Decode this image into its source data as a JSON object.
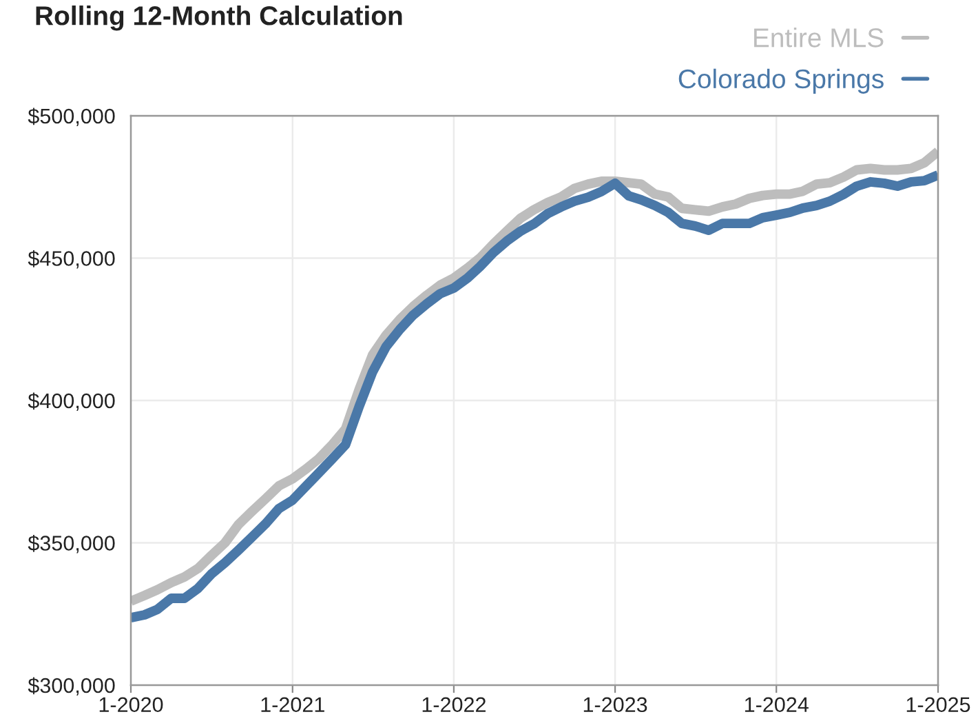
{
  "chart_data": {
    "type": "line",
    "title": "Rolling 12-Month Calculation",
    "x": [
      "2020-01",
      "2020-02",
      "2020-03",
      "2020-04",
      "2020-05",
      "2020-06",
      "2020-07",
      "2020-08",
      "2020-09",
      "2020-10",
      "2020-11",
      "2020-12",
      "2021-01",
      "2021-02",
      "2021-03",
      "2021-04",
      "2021-05",
      "2021-06",
      "2021-07",
      "2021-08",
      "2021-09",
      "2021-10",
      "2021-11",
      "2021-12",
      "2022-01",
      "2022-02",
      "2022-03",
      "2022-04",
      "2022-05",
      "2022-06",
      "2022-07",
      "2022-08",
      "2022-09",
      "2022-10",
      "2022-11",
      "2022-12",
      "2023-01",
      "2023-02",
      "2023-03",
      "2023-04",
      "2023-05",
      "2023-06",
      "2023-07",
      "2023-08",
      "2023-09",
      "2023-10",
      "2023-11",
      "2023-12",
      "2024-01",
      "2024-02",
      "2024-03",
      "2024-04",
      "2024-05",
      "2024-06",
      "2024-07",
      "2024-08",
      "2024-09",
      "2024-10",
      "2024-11",
      "2024-12",
      "2025-01"
    ],
    "series": [
      {
        "name": "Entire MLS",
        "color": "#bdbdbd",
        "values": [
          329500,
          331500,
          333500,
          336000,
          338000,
          341000,
          345500,
          350000,
          356500,
          361000,
          365500,
          370000,
          372500,
          376000,
          379500,
          384500,
          390000,
          404000,
          416000,
          423000,
          428500,
          433000,
          437000,
          440500,
          443000,
          446500,
          450000,
          455000,
          459500,
          464000,
          467000,
          469500,
          471500,
          474500,
          476000,
          477000,
          477000,
          476500,
          476000,
          472500,
          471500,
          467500,
          467000,
          466500,
          468000,
          469000,
          471000,
          472000,
          472500,
          472500,
          473500,
          476000,
          476500,
          478500,
          481000,
          481500,
          481000,
          481000,
          481500,
          483500,
          487500
        ]
      },
      {
        "name": "Colorado Springs",
        "color": "#4a78a8",
        "values": [
          323700,
          324700,
          326600,
          330500,
          330500,
          334000,
          339000,
          343000,
          347500,
          352000,
          356700,
          362000,
          365000,
          370000,
          374500,
          379500,
          384500,
          398000,
          410000,
          419000,
          425000,
          430000,
          434000,
          437500,
          439500,
          443000,
          447000,
          452000,
          456000,
          459500,
          462000,
          465600,
          468000,
          470000,
          471400,
          473400,
          476300,
          471900,
          470500,
          468500,
          466100,
          462200,
          461300,
          459800,
          462200,
          462200,
          462200,
          464200,
          465100,
          466100,
          467600,
          468500,
          470000,
          472400,
          475300,
          476800,
          476300,
          475300,
          476800,
          477200,
          479200
        ]
      }
    ],
    "xlim": [
      "2020-01",
      "2025-01"
    ],
    "xticks": [
      {
        "value": "2020-01",
        "label": "1-2020"
      },
      {
        "value": "2021-01",
        "label": "1-2021"
      },
      {
        "value": "2022-01",
        "label": "1-2022"
      },
      {
        "value": "2023-01",
        "label": "1-2023"
      },
      {
        "value": "2024-01",
        "label": "1-2024"
      },
      {
        "value": "2025-01",
        "label": "1-2025"
      }
    ],
    "ylim": [
      300000,
      500000
    ],
    "yticks": [
      {
        "value": 300000,
        "label": "$300,000"
      },
      {
        "value": 350000,
        "label": "$350,000"
      },
      {
        "value": 400000,
        "label": "$400,000"
      },
      {
        "value": 450000,
        "label": "$450,000"
      },
      {
        "value": 500000,
        "label": "$500,000"
      }
    ],
    "grid": true,
    "legend": "top right"
  }
}
